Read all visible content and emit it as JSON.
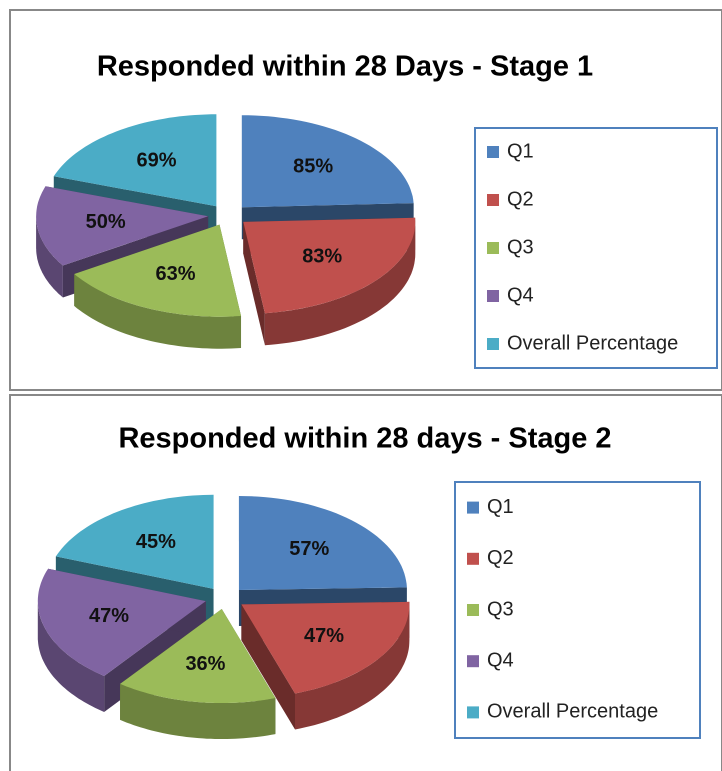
{
  "chart_data": [
    {
      "type": "pie",
      "title": "Responded within 28 Days - Stage 1",
      "categories": [
        "Q1",
        "Q2",
        "Q3",
        "Q4",
        "Overall Percentage"
      ],
      "values": [
        85,
        83,
        63,
        50,
        69
      ],
      "value_labels": [
        "85%",
        "83%",
        "63%",
        "50%",
        "69%"
      ],
      "colors": [
        "#4f81bd",
        "#c0504d",
        "#9bbb59",
        "#8064a2",
        "#4bacc6"
      ],
      "legend": "right"
    },
    {
      "type": "pie",
      "title": "Responded within 28 days - Stage 2",
      "categories": [
        "Q1",
        "Q2",
        "Q3",
        "Q4",
        "Overall Percentage"
      ],
      "values": [
        57,
        47,
        36,
        47,
        45
      ],
      "value_labels": [
        "57%",
        "47%",
        "36%",
        "47%",
        "45%"
      ],
      "colors": [
        "#4f81bd",
        "#c0504d",
        "#9bbb59",
        "#8064a2",
        "#4bacc6"
      ],
      "legend": "right"
    }
  ]
}
